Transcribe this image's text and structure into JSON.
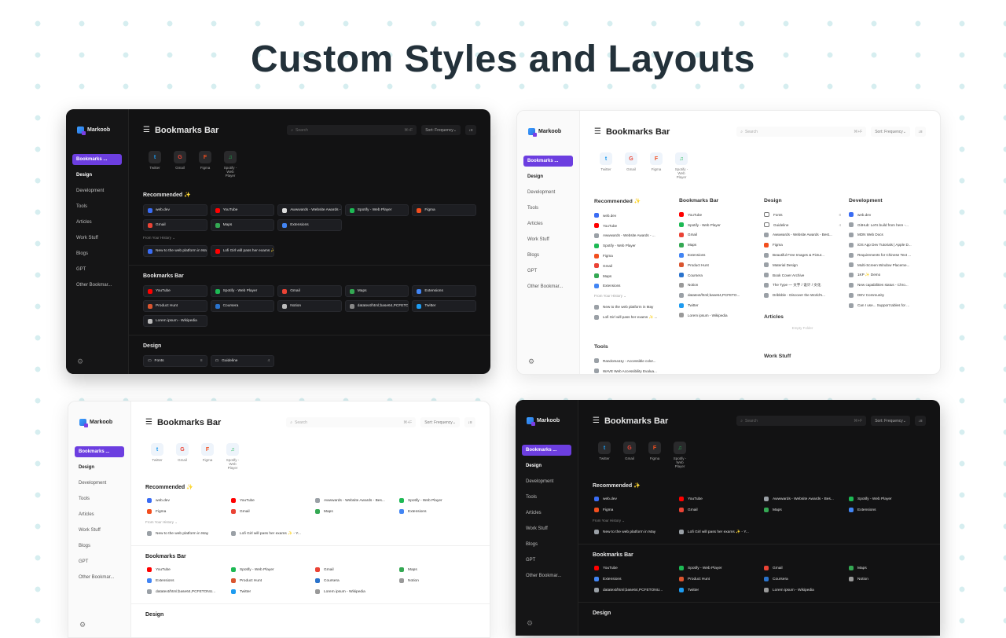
{
  "headline": "Custom Styles and Layouts",
  "app_name": "Markoob",
  "page_title": "Bookmarks Bar",
  "search_placeholder": "Search",
  "search_shortcut": "⌘+F",
  "sort_label": "Sort: Frequency",
  "sidebar": {
    "items": [
      "Bookmarks ...",
      "Design",
      "Development",
      "Tools",
      "Articles",
      "Work Stuff",
      "Blogs",
      "GPT",
      "Other Bookmar..."
    ]
  },
  "top_sites": [
    {
      "label": "Twitter",
      "glyph": "t",
      "color": "#1d9bf0"
    },
    {
      "label": "Gmail",
      "glyph": "G",
      "color": "#ea4335"
    },
    {
      "label": "Figma",
      "glyph": "F",
      "color": "#f24e1e"
    },
    {
      "label": "Spotify - Web Player",
      "glyph": "♫",
      "color": "#1db954"
    }
  ],
  "colors": {
    "accent": "#6c3ee0",
    "dark_bg": "#121213",
    "light_bg": "#ffffff"
  },
  "recommended_title": "Recommended",
  "recommended_spark": "✨",
  "history_label": "From Your History ⌄",
  "bookmarks_bar_title": "Bookmarks Bar",
  "design_title": "Design",
  "dark_recommended": [
    {
      "label": "web.dev",
      "color": "#3a6cf4"
    },
    {
      "label": "YouTube",
      "color": "#ff0000"
    },
    {
      "label": "Awwwards - Website Awards - Best Web Design...",
      "color": "#dddddd"
    },
    {
      "label": "Spotify - Web Player",
      "color": "#1db954"
    },
    {
      "label": "Figma",
      "color": "#f24e1e"
    },
    {
      "label": "Gmail",
      "color": "#ea4335"
    },
    {
      "label": "Maps",
      "color": "#34a853"
    },
    {
      "label": "Extensions",
      "color": "#4285f4"
    }
  ],
  "dark_history": [
    {
      "label": "New to the web platform in May",
      "color": "#3a6cf4"
    },
    {
      "label": "Lofi Girl will pass her exams ✨ - YouTube",
      "color": "#ff0000"
    }
  ],
  "dark_bookmarks": [
    {
      "label": "YouTube",
      "color": "#ff0000"
    },
    {
      "label": "Spotify - Web Player",
      "color": "#1db954"
    },
    {
      "label": "Gmail",
      "color": "#ea4335"
    },
    {
      "label": "Maps",
      "color": "#34a853"
    },
    {
      "label": "Extensions",
      "color": "#4285f4"
    },
    {
      "label": "Product Hunt",
      "color": "#da552f"
    },
    {
      "label": "Coursera",
      "color": "#2a73cc"
    },
    {
      "label": "Notion",
      "color": "#bbbbbb"
    },
    {
      "label": "datatext/html;base64,PCFETO",
      "color": "#888888"
    },
    {
      "label": "Twitter",
      "color": "#1d9bf0"
    },
    {
      "label": "Lorem ipsum - Wikipedia",
      "color": "#bbbbbb"
    }
  ],
  "dark_design": [
    {
      "label": "Fonts",
      "count": "8"
    },
    {
      "label": "Guideline",
      "count": "4"
    }
  ],
  "columns_layout": {
    "recommended": [
      "web.dev",
      "YouTube",
      "Awwwards - Website Awards - ...",
      "Spotify - Web Player",
      "Figma",
      "Gmail",
      "Maps",
      "Extensions"
    ],
    "history": [
      "New to the web platform in May",
      "Lofi Girl will pass her exams ✨ ..."
    ],
    "tools_title": "Tools",
    "tools": [
      "Randoma11y - Accessible color...",
      "WAVE Web Accessibility Evalua..."
    ],
    "bookmarks_bar": [
      "YouTube",
      "Spotify - Web Player",
      "Gmail",
      "Maps",
      "Extensions",
      "Product Hunt",
      "Coursera",
      "Notion",
      "datatext/html;base64,PCFETO...",
      "Twitter",
      "Lorem ipsum - Wikipedia"
    ],
    "design": [
      "Fonts",
      "Guideline",
      "Awwwards - Website Awards - Best...",
      "Figma",
      "Beautiful Free Images & Pictur...",
      "Material Design",
      "Book Cover Archive",
      "The Type — 文字 / 设计 / 文化",
      "Dribbble - Discover the World's..."
    ],
    "design_counts": [
      "8",
      "4"
    ],
    "articles_title": "Articles",
    "articles_empty": "Empty Folder",
    "work_title": "Work Stuff",
    "development_title": "Development",
    "development": [
      "web.dev",
      "GitHub: Let's build from here -...",
      "MDN Web Docs",
      "iOS App Dev Tutorials | Apple D...",
      "Requirements for Chinese Text ...",
      "Multi-Screen Window Placeme...",
      "1KP ✨ Demo",
      "New capabilities status - Chro...",
      "DEV Community",
      "Can I use... Support tables for ..."
    ]
  },
  "list_recommended": [
    "web.dev",
    "YouTube",
    "Awwwards - Website Awards - Bes...",
    "Spotify - Web Player",
    "Figma",
    "Gmail",
    "Maps",
    "Extensions"
  ],
  "list_history": [
    "New to the web platform in May",
    "Lofi Girl will pass her exams ✨ - Y..."
  ],
  "list_bookmarks": [
    "YouTube",
    "Spotify - Web Player",
    "Gmail",
    "Maps",
    "Extensions",
    "Product Hunt",
    "Coursera",
    "Notion",
    "datatext/html;base64,PCFETONU...",
    "Twitter",
    "Lorem ipsum - Wikipedia"
  ]
}
